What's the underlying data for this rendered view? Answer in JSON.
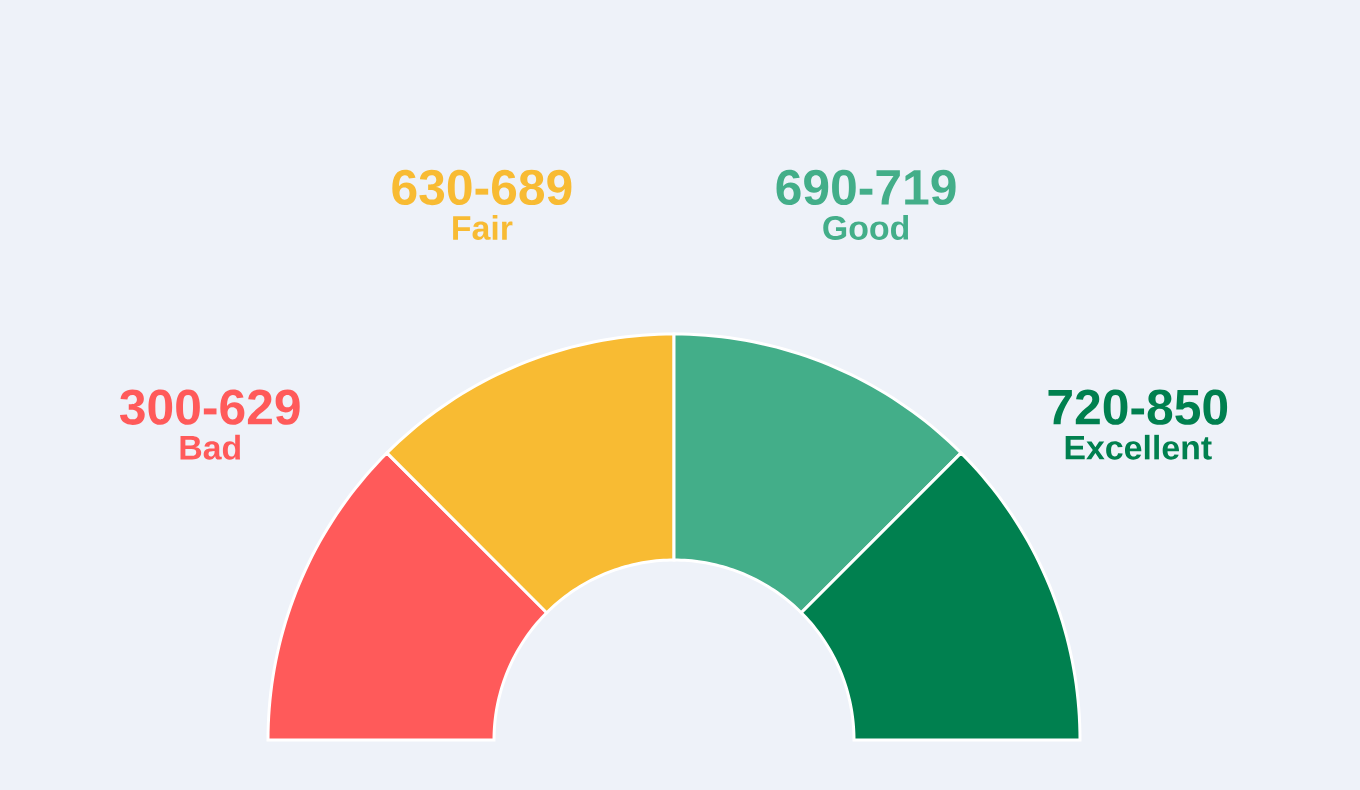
{
  "chart_data": {
    "type": "donut",
    "categories": [
      "Bad",
      "Fair",
      "Good",
      "Excellent"
    ],
    "values": [
      25,
      25,
      25,
      25
    ],
    "value_labels": [
      "300-629",
      "630-689",
      "690-719",
      "720-850"
    ],
    "colors": [
      "#ff5a5a",
      "#f8bb33",
      "#43ae89",
      "#00804f"
    ]
  }
}
